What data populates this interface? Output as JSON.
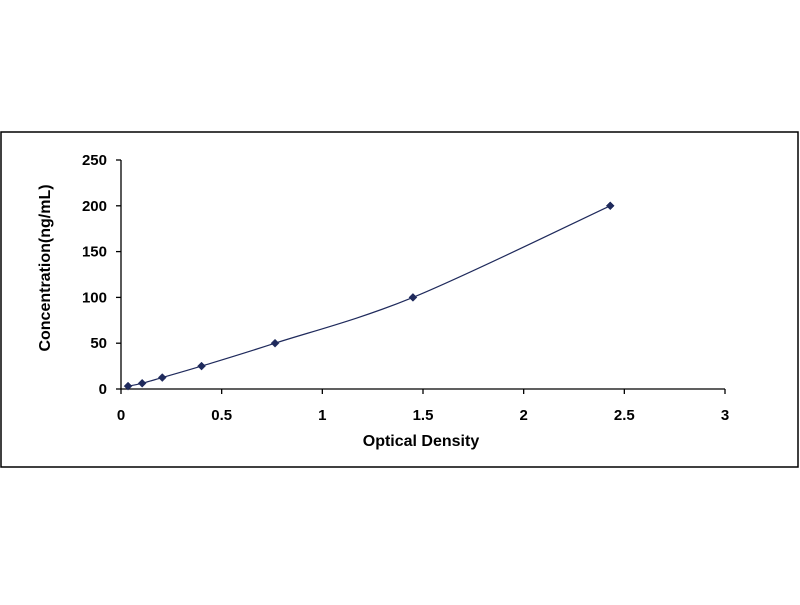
{
  "chart_data": {
    "type": "scatter",
    "title": "",
    "xlabel": "Optical Density",
    "ylabel": "Concentration(ng/mL)",
    "xlim": [
      0,
      3
    ],
    "ylim": [
      0,
      250
    ],
    "x_ticks": [
      0,
      0.5,
      1,
      1.5,
      2,
      2.5,
      3
    ],
    "y_ticks": [
      0,
      50,
      100,
      150,
      200,
      250
    ],
    "x_tick_labels": [
      "0",
      "0.5",
      "1",
      "1.5",
      "2",
      "2.5",
      "3"
    ],
    "y_tick_labels": [
      "0",
      "50",
      "100",
      "150",
      "200",
      "250"
    ],
    "grid": false,
    "legend": "none",
    "marker": "diamond",
    "trendline": "smooth curve",
    "series": [
      {
        "x": [
          0.035,
          0.105,
          0.205,
          0.4,
          0.765,
          1.45,
          2.43
        ],
        "y": [
          3.125,
          6.25,
          12.5,
          25,
          50,
          100,
          200
        ]
      }
    ],
    "colors": {
      "marker": "#1f2a5c",
      "line": "#1f2a5c",
      "axis": "#000000",
      "frame": "#000000"
    }
  }
}
